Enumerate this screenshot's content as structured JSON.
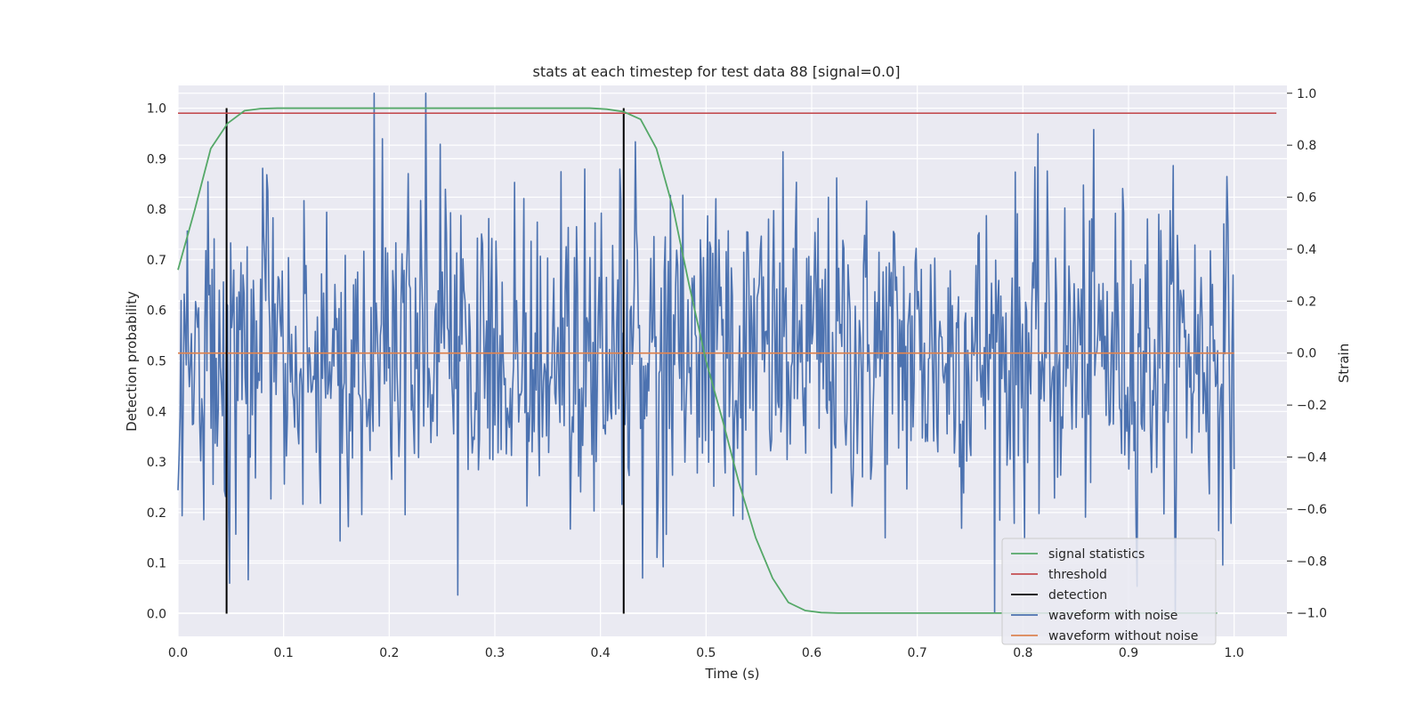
{
  "chart_data": {
    "type": "line",
    "title": "stats at each timestep for test data 88 [signal=0.0]",
    "xlabel": "Time (s)",
    "ylabel_left": "Detection probability",
    "ylabel_right": "Strain",
    "xlim": [
      0.0,
      1.05
    ],
    "ylim_left": [
      -0.045,
      1.045
    ],
    "ylim_right": [
      -1.09,
      1.03
    ],
    "x_ticks": [
      "0.0",
      "0.1",
      "0.2",
      "0.3",
      "0.4",
      "0.5",
      "0.6",
      "0.7",
      "0.8",
      "0.9",
      "1.0"
    ],
    "y_ticks_left": [
      "0.0",
      "0.1",
      "0.2",
      "0.3",
      "0.4",
      "0.5",
      "0.6",
      "0.7",
      "0.8",
      "0.9",
      "1.0"
    ],
    "y_ticks_right": [
      "−1.0",
      "−0.8",
      "−0.6",
      "−0.4",
      "−0.2",
      "0.0",
      "0.2",
      "0.4",
      "0.6",
      "0.8",
      "1.0"
    ],
    "grid": true,
    "legend_position": "bottom-right",
    "colors": {
      "signal_statistics": "#55a868",
      "threshold": "#c44e52",
      "detection": "#000000",
      "waveform_with_noise": "#4c72b0",
      "waveform_without_noise": "#dd8452",
      "background": "#eaeaf2",
      "grid": "#ffffff"
    },
    "legend": [
      "signal statistics",
      "threshold",
      "detection",
      "waveform with noise",
      "waveform without noise"
    ],
    "series": [
      {
        "name": "signal statistics",
        "axis": "left",
        "x": [
          0.0,
          0.016,
          0.031,
          0.047,
          0.063,
          0.078,
          0.094,
          0.2,
          0.3,
          0.39,
          0.406,
          0.422,
          0.438,
          0.453,
          0.469,
          0.484,
          0.5,
          0.516,
          0.531,
          0.547,
          0.563,
          0.578,
          0.594,
          0.609,
          0.625,
          0.7,
          0.8,
          0.9,
          0.984
        ],
        "y": [
          0.68,
          0.8,
          0.92,
          0.97,
          0.995,
          0.999,
          1.0,
          1.0,
          1.0,
          1.0,
          0.998,
          0.993,
          0.978,
          0.92,
          0.8,
          0.65,
          0.5,
          0.38,
          0.26,
          0.15,
          0.07,
          0.022,
          0.006,
          0.002,
          0.001,
          0.001,
          0.001,
          0.001,
          0.001
        ]
      },
      {
        "name": "threshold",
        "axis": "left",
        "x": [
          0.0,
          1.04
        ],
        "y": [
          0.99,
          0.99
        ]
      },
      {
        "name": "detection",
        "axis": "left",
        "x": [
          0.046,
          0.422
        ],
        "y_range": [
          0.0,
          1.0
        ]
      },
      {
        "name": "waveform with noise",
        "axis": "right",
        "x_range": [
          0.0,
          1.0
        ],
        "samples": 1024,
        "amplitude_std": 0.31,
        "y_extent": [
          -1.0,
          1.0
        ]
      },
      {
        "name": "waveform without noise",
        "axis": "right",
        "x": [
          0.0,
          1.0
        ],
        "y": [
          0.0,
          0.0
        ]
      }
    ]
  }
}
